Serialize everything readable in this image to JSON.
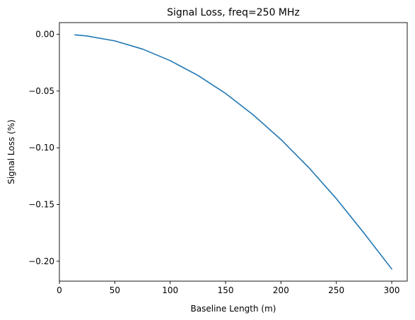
{
  "chart_data": {
    "type": "line",
    "title": "Signal Loss, freq=250 MHz",
    "xlabel": "Baseline Length (m)",
    "ylabel": "Signal Loss (%)",
    "xlim": [
      0,
      314
    ],
    "ylim": [
      -0.2175,
      0.0103
    ],
    "xticks": [
      0,
      50,
      100,
      150,
      200,
      250,
      300
    ],
    "xtick_labels": [
      "0",
      "50",
      "100",
      "150",
      "200",
      "250",
      "300"
    ],
    "yticks": [
      0.0,
      -0.05,
      -0.1,
      -0.15,
      -0.2
    ],
    "ytick_labels": [
      "0.00",
      "−0.05",
      "−0.10",
      "−0.15",
      "−0.20"
    ],
    "grid": false,
    "series": [
      {
        "color": "#1f77b4",
        "x": [
          14,
          25,
          50,
          75,
          100,
          125,
          150,
          175,
          200,
          225,
          250,
          275,
          300
        ],
        "y": [
          -0.0005,
          -0.0015,
          -0.0058,
          -0.013,
          -0.0232,
          -0.0362,
          -0.0521,
          -0.071,
          -0.0927,
          -0.1173,
          -0.1448,
          -0.1752,
          -0.2068
        ]
      }
    ]
  }
}
